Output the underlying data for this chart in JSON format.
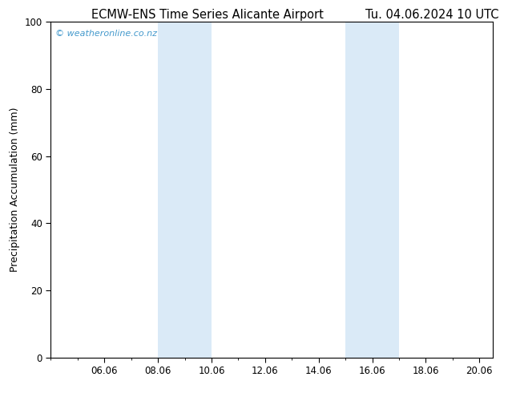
{
  "title_left": "ECMW-ENS Time Series Alicante Airport",
  "title_right": "Tu. 04.06.2024 10 UTC",
  "ylabel": "Precipitation Accumulation (mm)",
  "ylim": [
    0,
    100
  ],
  "yticks": [
    0,
    20,
    40,
    60,
    80,
    100
  ],
  "xlim": [
    4.0,
    20.5
  ],
  "xtick_positions": [
    6,
    8,
    10,
    12,
    14,
    16,
    18,
    20
  ],
  "xtick_labels": [
    "06.06",
    "08.06",
    "10.06",
    "12.06",
    "14.06",
    "16.06",
    "18.06",
    "20.06"
  ],
  "background_color": "#ffffff",
  "plot_bg_color": "#ffffff",
  "shaded_bands": [
    {
      "x_start": 8.0,
      "x_end": 10.0,
      "color": "#daeaf7"
    },
    {
      "x_start": 15.0,
      "x_end": 17.0,
      "color": "#daeaf7"
    }
  ],
  "watermark_text": "© weatheronline.co.nz",
  "watermark_color": "#4499cc",
  "title_fontsize": 10.5,
  "tick_fontsize": 8.5,
  "ylabel_fontsize": 9,
  "watermark_fontsize": 8
}
